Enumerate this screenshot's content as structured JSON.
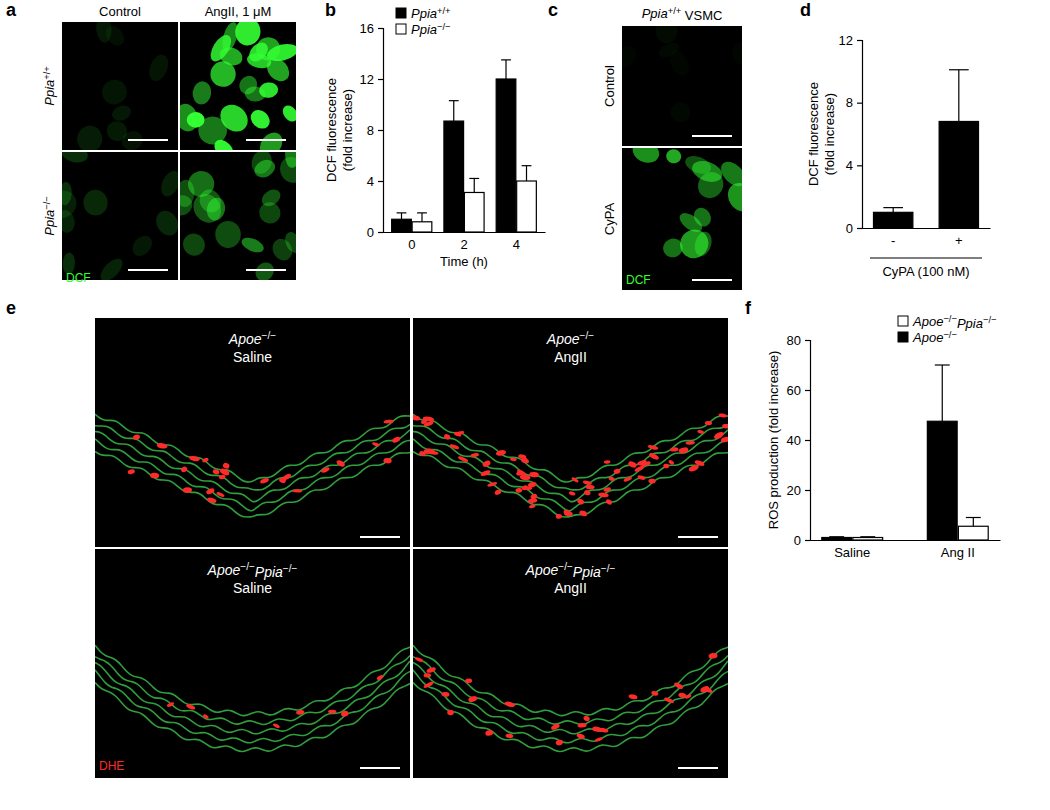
{
  "chart_data": [
    {
      "panel_label": "b",
      "type": "bar",
      "x_label": "Time (h)",
      "y_label": [
        "DCF fluorescence",
        "(fold increase)"
      ],
      "categories": [
        "0",
        "2",
        "4"
      ],
      "series": [
        {
          "name": "Ppia+/+",
          "color": "#000000",
          "values": [
            1.0,
            8.7,
            12.0
          ],
          "errors": [
            0.5,
            1.6,
            1.5
          ]
        },
        {
          "name": "Ppia−/−",
          "color": "#ffffff",
          "values": [
            0.8,
            3.1,
            4.0
          ],
          "errors": [
            0.7,
            1.1,
            1.2
          ]
        }
      ],
      "ylim": [
        0,
        16
      ],
      "yticks": [
        0,
        4,
        8,
        12,
        16
      ],
      "legend": "top-left"
    },
    {
      "panel_label": "d",
      "type": "bar",
      "x_label": "CyPA (100 nM)",
      "y_label": [
        "DCF fluorescence",
        "(fold increase)"
      ],
      "categories": [
        "-",
        "+"
      ],
      "values": [
        1.0,
        6.8
      ],
      "errors": [
        0.3,
        3.3
      ],
      "color": "#000000",
      "ylim": [
        0,
        12
      ],
      "yticks": [
        0,
        4,
        8,
        12
      ]
    },
    {
      "panel_label": "f",
      "type": "bar",
      "y_label": [
        "ROS production (fold increase)"
      ],
      "categories": [
        "Saline",
        "Ang II"
      ],
      "series": [
        {
          "name": "Apoe−/−Ppia−/−",
          "color": "#ffffff",
          "values": [
            1.0,
            5.5
          ],
          "errors": [
            0.3,
            3.5
          ]
        },
        {
          "name": "Apoe−/−",
          "color": "#000000",
          "values": [
            1.0,
            47.5
          ],
          "errors": [
            0.3,
            22.5
          ]
        }
      ],
      "ylim": [
        0,
        80
      ],
      "yticks": [
        0,
        20,
        40,
        60,
        80
      ],
      "legend": "top-right"
    }
  ],
  "image_panels": [
    {
      "panel_label": "a",
      "column_labels": [
        "Control",
        "AngII, 1 μM"
      ],
      "row_labels": [
        "Ppia+/+",
        "Ppia−/−"
      ],
      "stain": "DCF"
    },
    {
      "panel_label": "c",
      "title": "Ppia+/+ VSMC",
      "row_labels": [
        "Control",
        "CyPA"
      ],
      "stain": "DCF"
    },
    {
      "panel_label": "e",
      "cells": [
        [
          "Apoe−/−",
          "Saline"
        ],
        [
          "Apoe−/−",
          "AngII"
        ],
        [
          "Apoe−/−Ppia−/−",
          "Saline"
        ],
        [
          "Apoe−/−Ppia−/−",
          "AngII"
        ]
      ],
      "stain": "DHE"
    }
  ]
}
